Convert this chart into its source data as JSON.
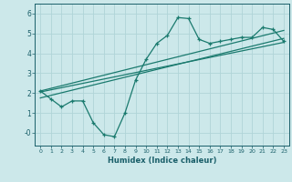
{
  "xlabel": "Humidex (Indice chaleur)",
  "bg_color": "#cce8ea",
  "grid_color": "#b0d4d8",
  "line_color": "#1a7a6e",
  "xlim": [
    -0.5,
    23.5
  ],
  "ylim": [
    -0.65,
    6.5
  ],
  "xticks": [
    0,
    1,
    2,
    3,
    4,
    5,
    6,
    7,
    8,
    9,
    10,
    11,
    12,
    13,
    14,
    15,
    16,
    17,
    18,
    19,
    20,
    21,
    22,
    23
  ],
  "yticks": [
    0,
    1,
    2,
    3,
    4,
    5,
    6
  ],
  "ytick_labels": [
    "-0",
    "1",
    "2",
    "3",
    "4",
    "5",
    "6"
  ],
  "data_x": [
    0,
    1,
    2,
    3,
    4,
    5,
    6,
    7,
    8,
    9,
    10,
    11,
    12,
    13,
    14,
    15,
    16,
    17,
    18,
    19,
    20,
    21,
    22,
    23
  ],
  "data_y": [
    2.1,
    1.7,
    1.3,
    1.6,
    1.6,
    0.5,
    -0.1,
    -0.2,
    1.0,
    2.65,
    3.7,
    4.5,
    4.9,
    5.8,
    5.75,
    4.7,
    4.5,
    4.6,
    4.7,
    4.8,
    4.8,
    5.3,
    5.2,
    4.6
  ],
  "trend1_x": [
    0,
    23
  ],
  "trend1_y": [
    2.05,
    4.55
  ],
  "trend2_x": [
    0,
    23
  ],
  "trend2_y": [
    1.75,
    4.75
  ],
  "trend3_x": [
    0,
    23
  ],
  "trend3_y": [
    2.1,
    5.15
  ]
}
